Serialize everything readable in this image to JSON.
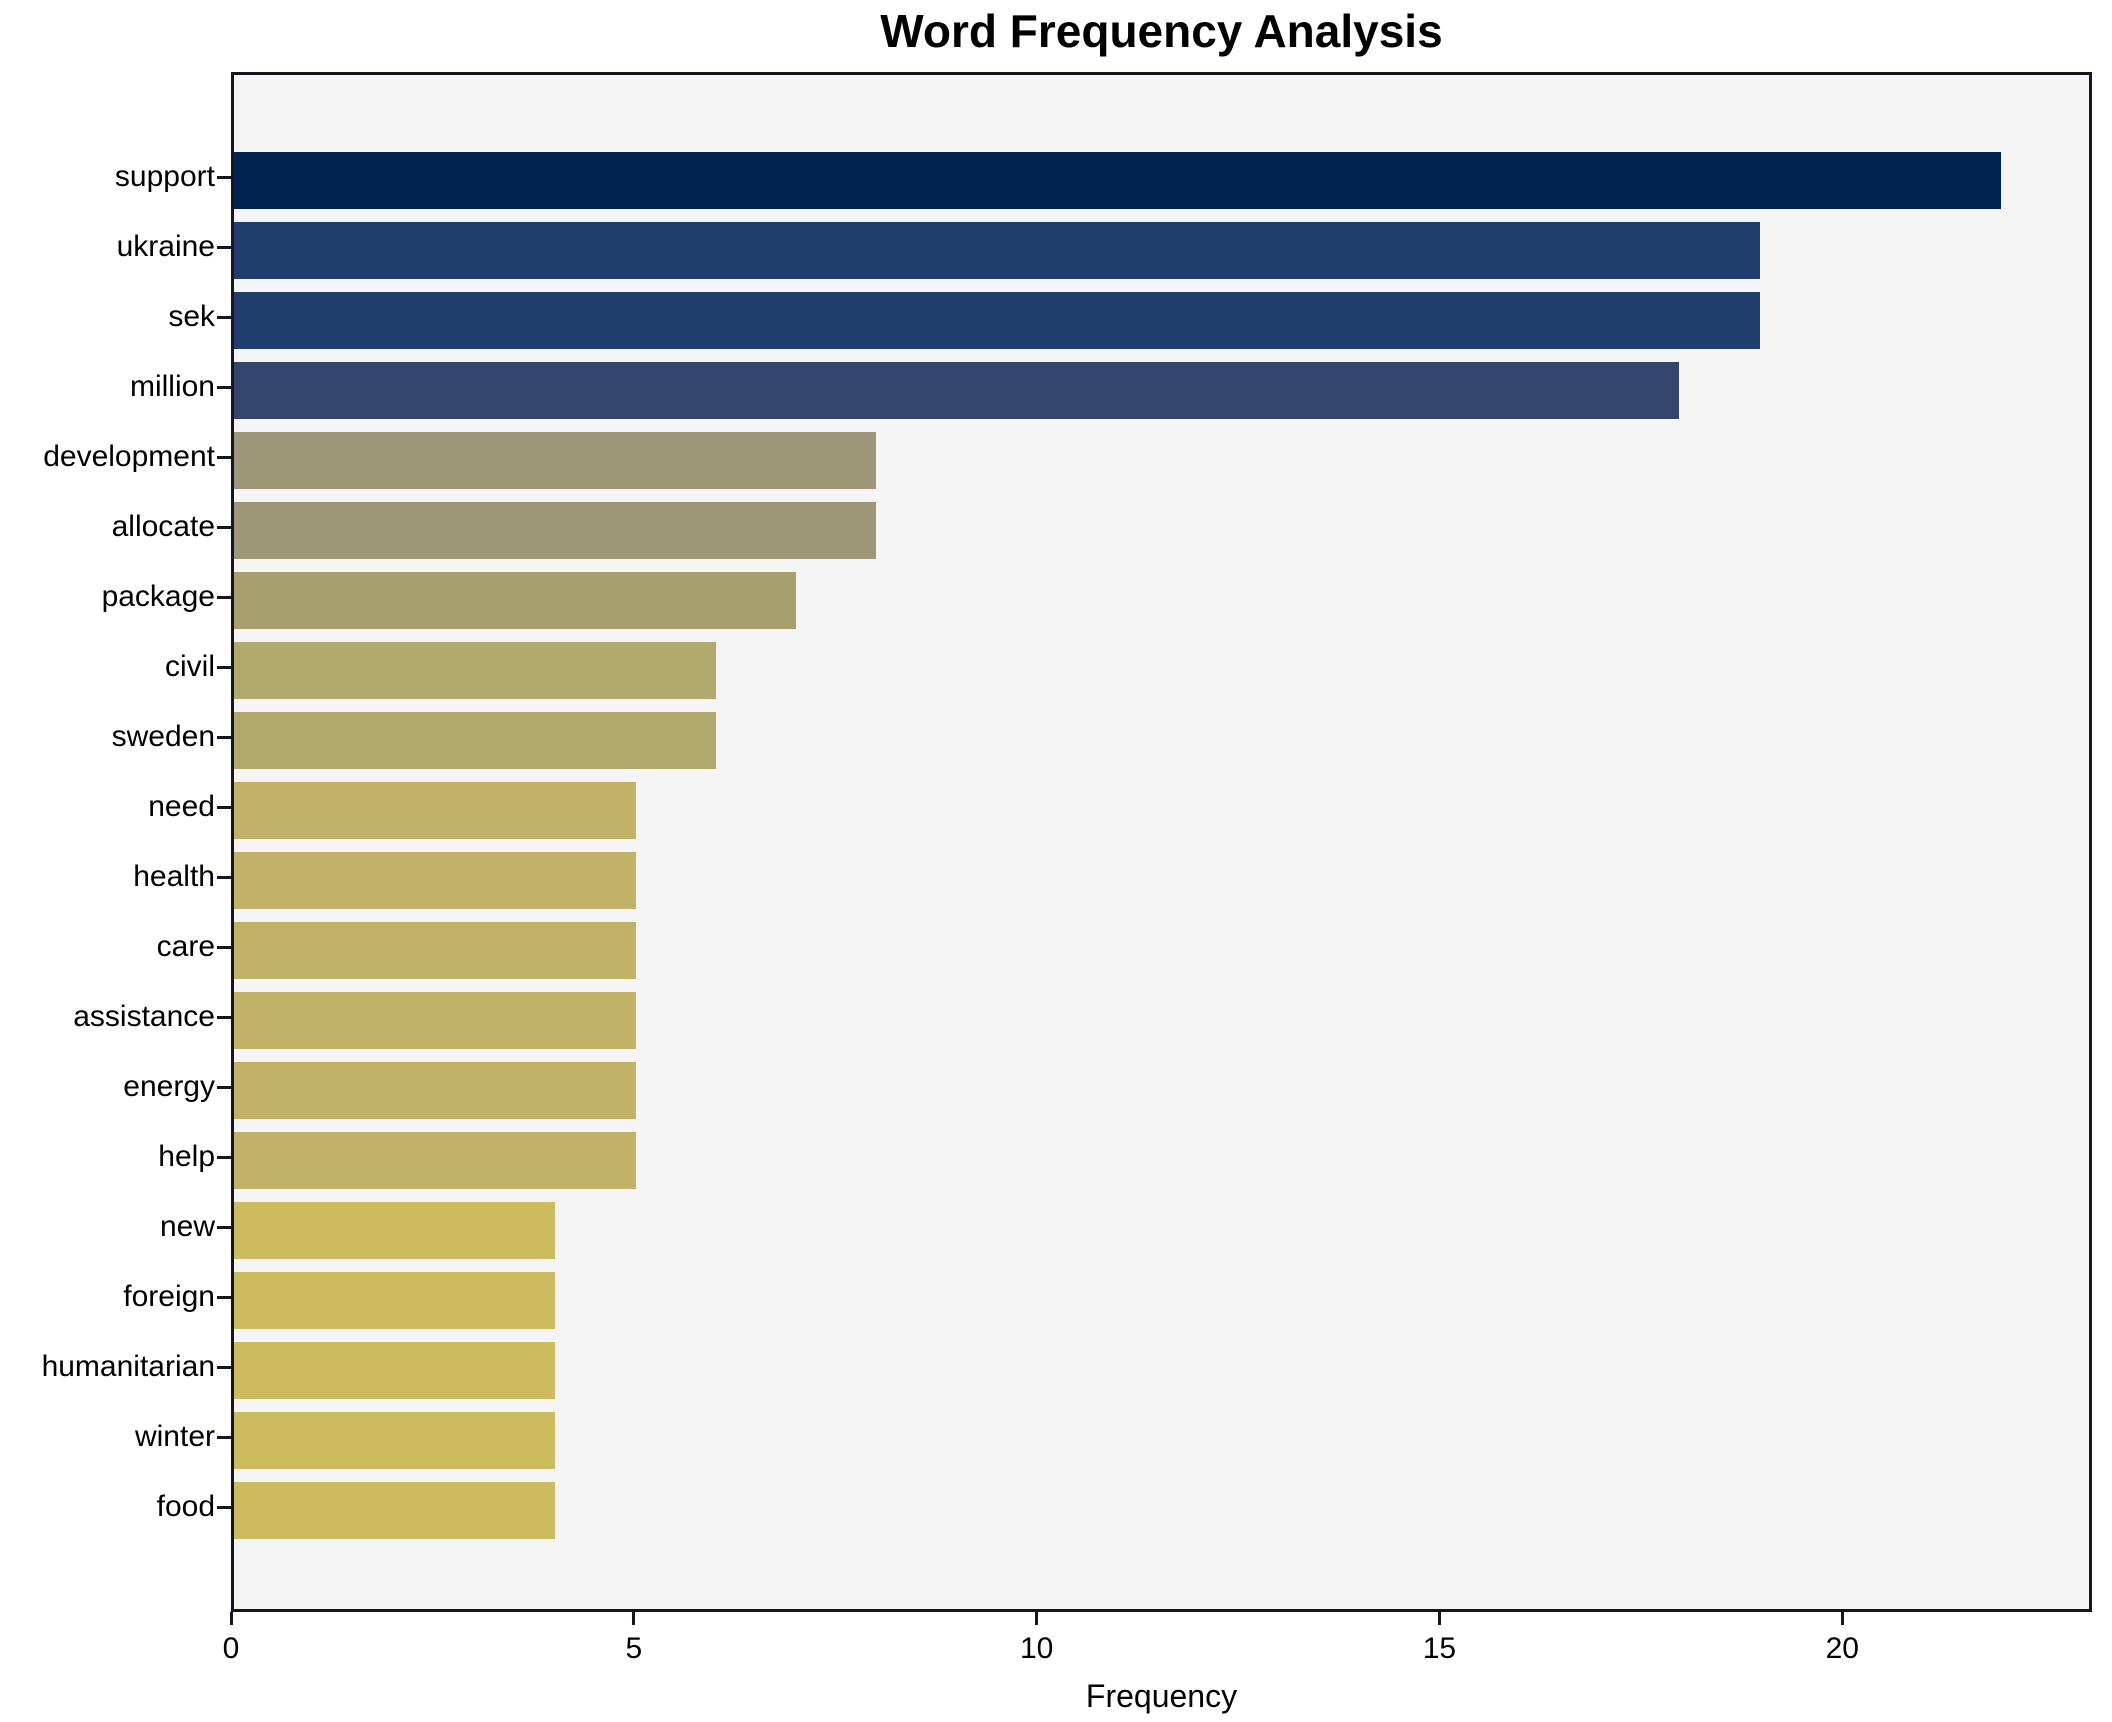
{
  "title": "Word Frequency Analysis",
  "xlabel": "Frequency",
  "colors": {
    "plot_background": "#f5f5f6",
    "figure_background": "#ffffff",
    "spine": "#15151f",
    "text": "#000000"
  },
  "chart_data": {
    "type": "bar",
    "orientation": "horizontal",
    "title": "Word Frequency Analysis",
    "xlabel": "Frequency",
    "ylabel": "",
    "grid": false,
    "legend": null,
    "xlim": [
      0,
      23.1
    ],
    "x_ticks": [
      0,
      5,
      10,
      15,
      20
    ],
    "categories": [
      "support",
      "ukraine",
      "sek",
      "million",
      "development",
      "allocate",
      "package",
      "civil",
      "sweden",
      "need",
      "health",
      "care",
      "assistance",
      "energy",
      "help",
      "new",
      "foreign",
      "humanitarian",
      "winter",
      "food"
    ],
    "values": [
      22,
      19,
      19,
      18,
      8,
      8,
      7,
      6,
      6,
      5,
      5,
      5,
      5,
      5,
      5,
      4,
      4,
      4,
      4,
      4
    ],
    "bar_colors": [
      "#002350",
      "#213d6d",
      "#213d6d",
      "#32466b",
      "#9e9678",
      "#9e9678",
      "#a89f6e",
      "#b2a96c",
      "#b2a96c",
      "#c2b267",
      "#c2b267",
      "#c2b267",
      "#c2b267",
      "#c2b267",
      "#c2b267",
      "#cdbc5f",
      "#cdbc5f",
      "#cdbc5f",
      "#cdbc5f",
      "#cdbc5f"
    ]
  }
}
